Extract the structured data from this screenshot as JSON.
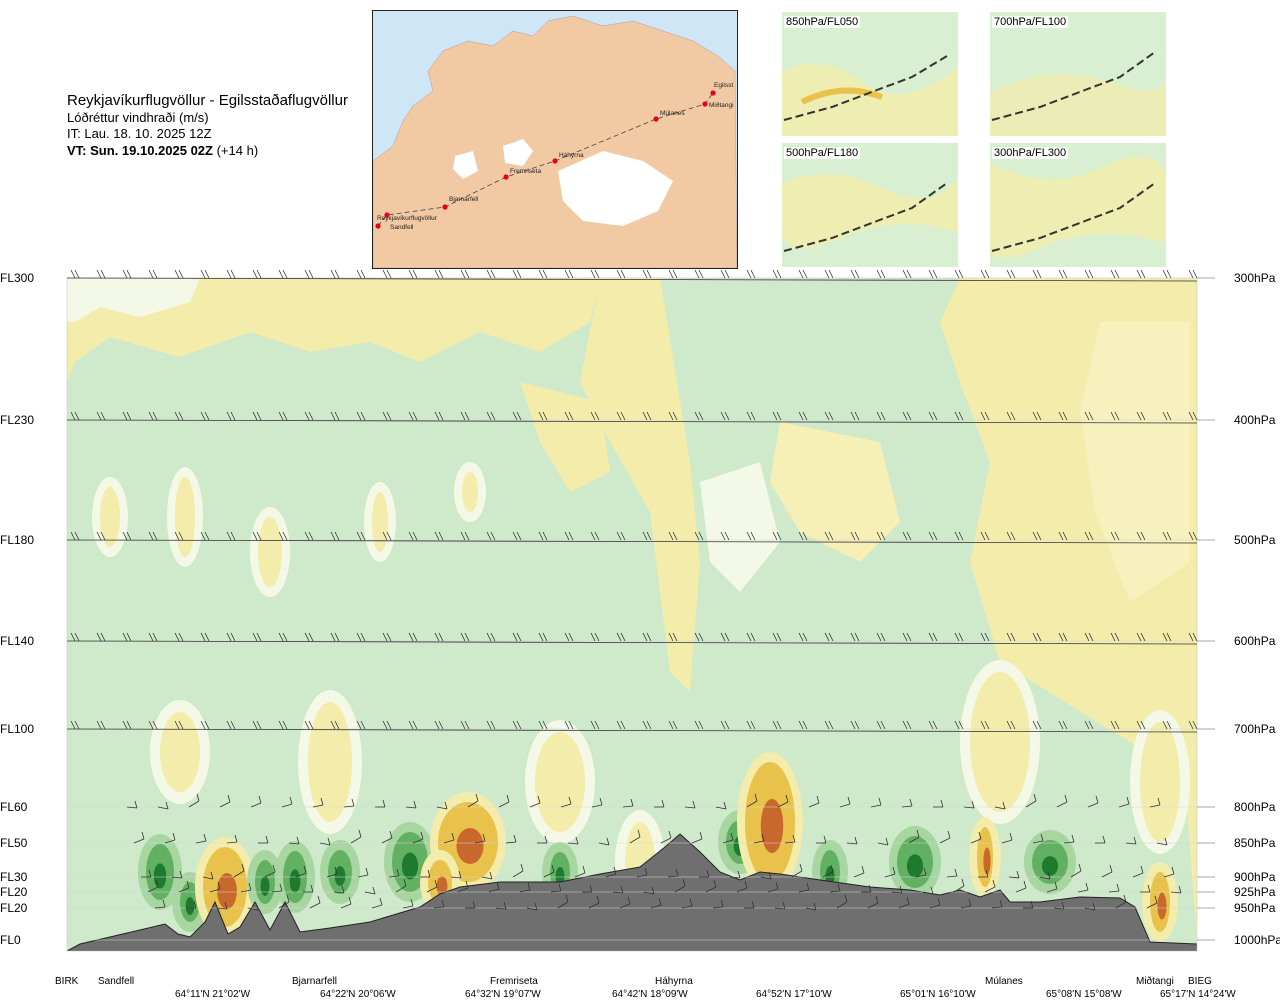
{
  "header": {
    "title": "Reykjavíkurflugvöllur - Egilsstaðaflugvöllur",
    "subtitle": "Lóðréttur vindhraði (m/s)",
    "issue_time": "IT: Lau. 18. 10. 2025 12Z",
    "valid_time": "VT: Sun. 19.10.2025 02Z",
    "valid_offset": "(+14 h)"
  },
  "map": {
    "stations": [
      "Reykjavíkurflugvöllur",
      "Sandfell",
      "Bjarnarfell",
      "Fremriseta",
      "Háhyrna",
      "Múlanes",
      "Miðtangi",
      "Egilsst"
    ],
    "colors": {
      "sea": "#cfe6f6",
      "land": "#f1c9a3",
      "ice": "#ffffff",
      "route": "#444444",
      "point": "#e8001c"
    }
  },
  "thumbnails": [
    {
      "label": "850hPa/FL050"
    },
    {
      "label": "700hPa/FL100"
    },
    {
      "label": "500hPa/FL180"
    },
    {
      "label": "300hPa/FL300"
    }
  ],
  "chart_data": {
    "type": "heatmap",
    "title": "Lóðréttur vindhraði (m/s)",
    "left_axis_labels": [
      "FL300",
      "FL230",
      "FL180",
      "FL140",
      "FL100",
      "FL60",
      "FL50",
      "FL30",
      "FL20",
      "FL20",
      "FL0"
    ],
    "right_axis_labels": [
      "300hPa",
      "400hPa",
      "500hPa",
      "600hPa",
      "700hPa",
      "800hPa",
      "850hPa",
      "900hPa",
      "925hPa",
      "950hPa",
      "1000hPa"
    ],
    "pressure_levels_hPa": [
      300,
      400,
      500,
      600,
      700,
      800,
      850,
      900,
      925,
      950,
      1000
    ],
    "x_station_labels": [
      "BIRK",
      "Sandfell",
      "Bjarnarfell",
      "Fremriseta",
      "Háhyrna",
      "Múlanes",
      "Miðtangi",
      "BIEG"
    ],
    "x_coordinate_labels": [
      "64°11'N 21°02'W",
      "64°22'N 20°06'W",
      "64°32'N 19°07'W",
      "64°42'N 18°09'W",
      "64°52'N 17°10'W",
      "65°01'N 16°10'W",
      "65°08'N 15°08'W",
      "65°17'N 14°24'W"
    ],
    "colors": {
      "strong_down": "#1e7b2e",
      "mod_down": "#62b163",
      "weak_down": "#a7d6a1",
      "neutral": "#cfe9cb",
      "near_zero": "#f3f9e6",
      "weak_up": "#f3ecaa",
      "mod_up": "#e9c24b",
      "strong_up": "#c8682d",
      "terrain": "#6f6f6f"
    },
    "grid": true
  }
}
